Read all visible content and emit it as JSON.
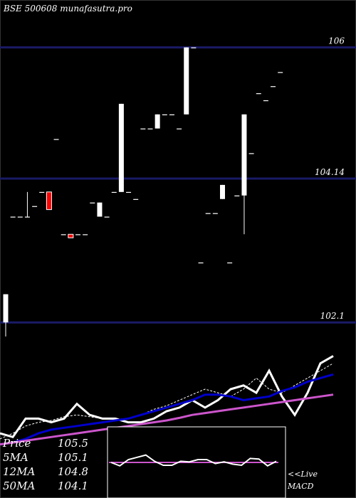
{
  "header": {
    "title": "BSE 500608 munafasutra.pro"
  },
  "chart_data": [
    {
      "type": "candlestick",
      "title": "BSE 500608 munafasutra.pro",
      "ylim": [
        101.85,
        106.45
      ],
      "y_ticks": [
        106,
        104.14,
        102.1
      ],
      "y_tick_labels": [
        "106",
        "104.14",
        "102.1"
      ],
      "grid": false,
      "up_color": "#ffffff",
      "down_color": "#ff0000",
      "candles": [
        {
          "o": 102.1,
          "h": 102.5,
          "l": 101.9,
          "c": 102.5
        },
        {
          "o": 103.6,
          "h": 103.6,
          "l": 103.6,
          "c": 103.6
        },
        {
          "o": 103.6,
          "h": 103.6,
          "l": 103.6,
          "c": 103.6
        },
        {
          "o": 103.6,
          "h": 103.95,
          "l": 103.6,
          "c": 103.6
        },
        {
          "o": 103.75,
          "h": 103.75,
          "l": 103.75,
          "c": 103.75
        },
        {
          "o": 103.95,
          "h": 103.95,
          "l": 103.95,
          "c": 103.95
        },
        {
          "o": 103.95,
          "h": 103.95,
          "l": 103.7,
          "c": 103.7
        },
        {
          "o": 104.7,
          "h": 104.7,
          "l": 104.7,
          "c": 104.7
        },
        {
          "o": 103.35,
          "h": 103.35,
          "l": 103.35,
          "c": 103.35
        },
        {
          "o": 103.35,
          "h": 103.35,
          "l": 103.3,
          "c": 103.3
        },
        {
          "o": 103.35,
          "h": 103.35,
          "l": 103.35,
          "c": 103.35
        },
        {
          "o": 103.35,
          "h": 103.35,
          "l": 103.35,
          "c": 103.35
        },
        {
          "o": 103.8,
          "h": 103.8,
          "l": 103.8,
          "c": 103.8
        },
        {
          "o": 103.6,
          "h": 103.8,
          "l": 103.6,
          "c": 103.8
        },
        {
          "o": 103.6,
          "h": 103.6,
          "l": 103.6,
          "c": 103.6
        },
        {
          "o": 103.95,
          "h": 103.95,
          "l": 103.95,
          "c": 103.95
        },
        {
          "o": 103.95,
          "h": 105.2,
          "l": 103.95,
          "c": 105.2
        },
        {
          "o": 103.95,
          "h": 103.95,
          "l": 103.95,
          "c": 103.95
        },
        {
          "o": 103.85,
          "h": 103.85,
          "l": 103.85,
          "c": 103.85
        },
        {
          "o": 104.85,
          "h": 104.85,
          "l": 104.85,
          "c": 104.85
        },
        {
          "o": 104.85,
          "h": 104.85,
          "l": 104.85,
          "c": 104.85
        },
        {
          "o": 104.85,
          "h": 105.05,
          "l": 104.85,
          "c": 105.05
        },
        {
          "o": 105.05,
          "h": 105.05,
          "l": 105.05,
          "c": 105.05
        },
        {
          "o": 105.05,
          "h": 105.05,
          "l": 105.05,
          "c": 105.05
        },
        {
          "o": 104.85,
          "h": 104.85,
          "l": 104.85,
          "c": 104.85
        },
        {
          "o": 105.05,
          "h": 106,
          "l": 105.05,
          "c": 106
        },
        {
          "o": 106,
          "h": 106,
          "l": 106,
          "c": 106
        },
        {
          "o": 102.95,
          "h": 102.95,
          "l": 102.95,
          "c": 102.95
        },
        {
          "o": 103.65,
          "h": 103.65,
          "l": 103.65,
          "c": 103.65
        },
        {
          "o": 103.65,
          "h": 103.65,
          "l": 103.65,
          "c": 103.65
        },
        {
          "o": 103.85,
          "h": 104.05,
          "l": 103.85,
          "c": 104.05
        },
        {
          "o": 102.95,
          "h": 102.95,
          "l": 102.95,
          "c": 102.95
        },
        {
          "o": 103.9,
          "h": 103.9,
          "l": 103.9,
          "c": 103.9
        },
        {
          "o": 103.9,
          "h": 105.05,
          "l": 103.35,
          "c": 105.05
        },
        {
          "o": 104.5,
          "h": 104.5,
          "l": 104.5,
          "c": 104.5
        },
        {
          "o": 105.35,
          "h": 105.35,
          "l": 105.35,
          "c": 105.35
        },
        {
          "o": 105.25,
          "h": 105.25,
          "l": 105.25,
          "c": 105.25
        },
        {
          "o": 105.45,
          "h": 105.45,
          "l": 105.45,
          "c": 105.45
        },
        {
          "o": 105.65,
          "h": 105.65,
          "l": 105.65,
          "c": 105.65
        }
      ],
      "red_candles": [
        {
          "o": 103.95,
          "h": 103.95,
          "l": 103.7,
          "c": 103.7
        },
        {
          "o": 103.35,
          "h": 103.35,
          "l": 103.3,
          "c": 103.3
        }
      ]
    },
    {
      "type": "line",
      "title": "",
      "series": [
        {
          "name": "Price",
          "color": "#ffffff",
          "values": [
            102.3,
            102.2,
            102.7,
            102.7,
            102.6,
            102.7,
            103.1,
            102.8,
            102.7,
            102.7,
            102.6,
            102.6,
            102.7,
            102.9,
            103.0,
            103.2,
            103.0,
            103.2,
            103.5,
            103.6,
            103.4,
            104.0,
            103.3,
            102.8,
            103.4,
            104.2,
            104.4
          ]
        },
        {
          "name": "5MA",
          "color": "#ffffff",
          "values": [
            102.15,
            102.3,
            102.5,
            102.6,
            102.65,
            102.75,
            102.8,
            102.75,
            102.7,
            102.68,
            102.7,
            102.8,
            102.95,
            103.05,
            103.2,
            103.35,
            103.5,
            103.4,
            103.3,
            103.5,
            103.8,
            103.5,
            103.4,
            103.6,
            103.8,
            104.0,
            104.2
          ]
        },
        {
          "name": "12MA",
          "color": "#0000cc",
          "values": [
            102.0,
            102.05,
            102.15,
            102.3,
            102.4,
            102.45,
            102.5,
            102.55,
            102.6,
            102.65,
            102.7,
            102.8,
            102.9,
            103.0,
            103.1,
            103.2,
            103.35,
            103.35,
            103.3,
            103.2,
            103.25,
            103.3,
            103.45,
            103.55,
            103.7,
            103.8,
            103.9
          ]
        },
        {
          "name": "50MA",
          "color": "#cc55cc",
          "values": [
            102.0,
            102.05,
            102.1,
            102.15,
            102.2,
            102.25,
            102.3,
            102.35,
            102.4,
            102.45,
            102.5,
            102.55,
            102.6,
            102.65,
            102.72,
            102.8,
            102.85,
            102.9,
            102.95,
            103.0,
            103.05,
            103.1,
            103.15,
            103.2,
            103.25,
            103.3,
            103.35
          ]
        }
      ]
    }
  ],
  "macd": {
    "label_live": "<<Live",
    "label_macd": "MACD",
    "line_values": [
      0,
      -0.6,
      0.5,
      0.9,
      1.3,
      0.2,
      -0.5,
      -0.5,
      0.2,
      0.1,
      0.5,
      0.5,
      -0.2,
      0.1,
      -0.3,
      -0.5,
      0.7,
      0.6,
      -0.6,
      0.2
    ],
    "signal_value": 0,
    "line_color": "#ffffff",
    "signal_color": "#cc55cc"
  },
  "legend": [
    {
      "label": "Price",
      "value": "105.5"
    },
    {
      "label": "5MA",
      "value": "105.1"
    },
    {
      "label": "12MA",
      "value": "104.8"
    },
    {
      "label": "50MA",
      "value": "104.1"
    }
  ]
}
